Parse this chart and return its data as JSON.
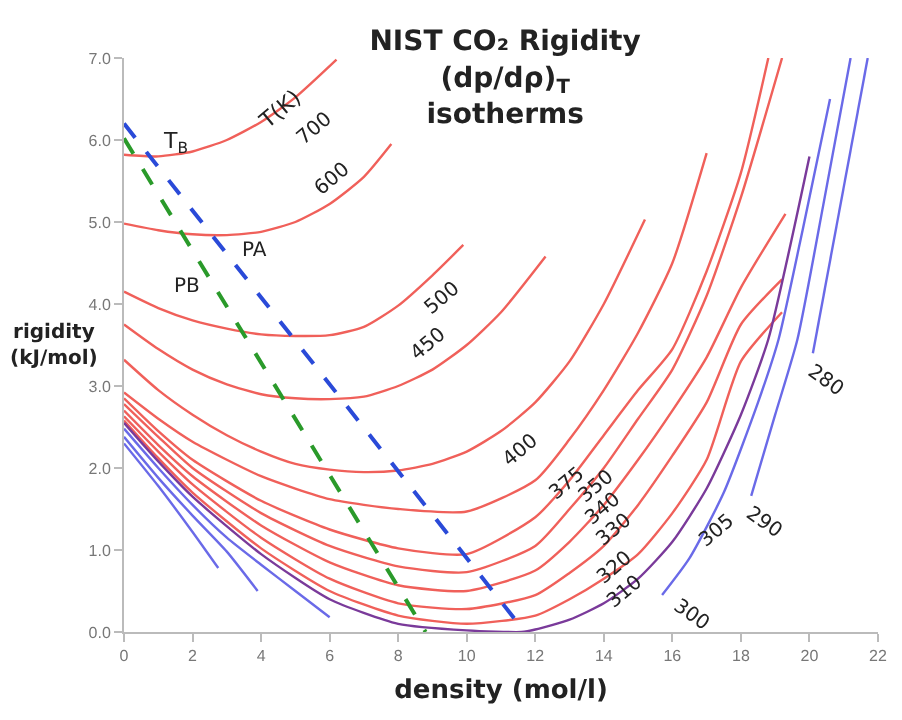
{
  "chart_data": {
    "type": "line",
    "title": "NIST CO₂ Rigidity\n(dp/dρ)$_{T}$\nisotherms",
    "xlabel": "density (mol/l)",
    "ylabel": "rigidity\n(kJ/mol)",
    "xlim": [
      0,
      22
    ],
    "ylim": [
      0,
      7
    ],
    "xticks": [
      0,
      2,
      4,
      6,
      8,
      10,
      12,
      14,
      16,
      18,
      20,
      22
    ],
    "yticks": [
      {
        "value": 0,
        "label": "0.0"
      },
      {
        "value": 1,
        "label": "1.0"
      },
      {
        "value": 2,
        "label": "2.0"
      },
      {
        "value": 3,
        "label": "3.0"
      },
      {
        "value": 4,
        "label": "4.0"
      },
      {
        "value": 5,
        "label": "5.0"
      },
      {
        "value": 6,
        "label": "6.0"
      },
      {
        "value": 7,
        "label": "7.0"
      }
    ],
    "grid": false,
    "legend": false,
    "marker": "none",
    "line_style": "solid",
    "series": [
      {
        "name": "700",
        "color": "#f0605a",
        "x": [
          0,
          1,
          2,
          3,
          4,
          5,
          6.2
        ],
        "values": [
          5.82,
          5.8,
          5.86,
          6.0,
          6.22,
          6.52,
          6.98
        ]
      },
      {
        "name": "600",
        "color": "#f0605a",
        "x": [
          0,
          1,
          2,
          3,
          4,
          5,
          6,
          7,
          7.8
        ],
        "values": [
          4.98,
          4.9,
          4.85,
          4.84,
          4.88,
          5.0,
          5.22,
          5.55,
          5.95
        ]
      },
      {
        "name": "500",
        "color": "#f0605a",
        "x": [
          0,
          1,
          2,
          3,
          4,
          5,
          6,
          7,
          8,
          9,
          9.9
        ],
        "values": [
          4.15,
          3.95,
          3.8,
          3.7,
          3.63,
          3.61,
          3.62,
          3.72,
          3.98,
          4.35,
          4.72
        ]
      },
      {
        "name": "450",
        "color": "#f0605a",
        "x": [
          0,
          1,
          2,
          3,
          4,
          5,
          6,
          7,
          8,
          9,
          10,
          11,
          12.3
        ],
        "values": [
          3.75,
          3.45,
          3.2,
          3.02,
          2.9,
          2.85,
          2.84,
          2.87,
          3.0,
          3.2,
          3.5,
          3.9,
          4.58
        ]
      },
      {
        "name": "400",
        "color": "#f0605a",
        "x": [
          0,
          1,
          2,
          3,
          4,
          5,
          6,
          7,
          8,
          9,
          10,
          11,
          12,
          13,
          14,
          15.2
        ],
        "values": [
          3.32,
          2.95,
          2.65,
          2.4,
          2.2,
          2.05,
          1.98,
          1.95,
          1.97,
          2.05,
          2.2,
          2.45,
          2.8,
          3.3,
          4.0,
          5.03
        ]
      },
      {
        "name": "375",
        "color": "#f0605a",
        "x": [
          0,
          1,
          2,
          4,
          6,
          8,
          10,
          12,
          13,
          14,
          15,
          16,
          17
        ],
        "values": [
          2.92,
          2.6,
          2.32,
          1.9,
          1.62,
          1.5,
          1.47,
          1.85,
          2.35,
          2.95,
          3.65,
          4.5,
          5.84
        ]
      },
      {
        "name": "350",
        "color": "#f0605a",
        "x": [
          0,
          1,
          2,
          4,
          6,
          8,
          10,
          12,
          13,
          14,
          15,
          16,
          17,
          18,
          18.8
        ],
        "values": [
          2.85,
          2.45,
          2.1,
          1.6,
          1.25,
          1.02,
          0.95,
          1.4,
          1.85,
          2.4,
          2.95,
          3.45,
          4.4,
          5.6,
          7.0
        ]
      },
      {
        "name": "340",
        "color": "#f0605a",
        "x": [
          0,
          1,
          2,
          4,
          6,
          8,
          10,
          12,
          13,
          14,
          15,
          16,
          17,
          18,
          19.2
        ],
        "values": [
          2.78,
          2.38,
          2.0,
          1.45,
          1.05,
          0.8,
          0.73,
          1.05,
          1.5,
          2.0,
          2.6,
          3.2,
          4.1,
          5.3,
          7.0
        ]
      },
      {
        "name": "330",
        "color": "#f0605a",
        "x": [
          0,
          1,
          2,
          4,
          6,
          8,
          10,
          12,
          13,
          14,
          15,
          16,
          17,
          18,
          19.3
        ],
        "values": [
          2.7,
          2.28,
          1.9,
          1.3,
          0.85,
          0.57,
          0.5,
          0.75,
          1.1,
          1.55,
          2.1,
          2.7,
          3.35,
          4.2,
          5.1
        ]
      },
      {
        "name": "320",
        "color": "#f0605a",
        "x": [
          0,
          1,
          2,
          4,
          6,
          8,
          10,
          12,
          13,
          14,
          15,
          16,
          17,
          18,
          19.2
        ],
        "values": [
          2.63,
          2.2,
          1.8,
          1.15,
          0.65,
          0.35,
          0.28,
          0.45,
          0.72,
          1.05,
          1.55,
          2.15,
          2.8,
          3.75,
          4.3
        ]
      },
      {
        "name": "310",
        "color": "#f0605a",
        "x": [
          0,
          1,
          2,
          4,
          6,
          8,
          10,
          12,
          13,
          14,
          15,
          16,
          17,
          18,
          19.2
        ],
        "values": [
          2.58,
          2.12,
          1.7,
          1.02,
          0.5,
          0.2,
          0.1,
          0.2,
          0.4,
          0.65,
          0.95,
          1.45,
          2.1,
          3.3,
          3.9
        ]
      },
      {
        "name": "305",
        "color": "#7a3a9a",
        "x": [
          0,
          1,
          2,
          4,
          6,
          8,
          10,
          11.6,
          12,
          13,
          14,
          15,
          16,
          17,
          18,
          18.8,
          20
        ],
        "values": [
          2.55,
          2.08,
          1.65,
          0.95,
          0.4,
          0.1,
          0.02,
          0,
          0.03,
          0.15,
          0.35,
          0.65,
          1.1,
          1.75,
          2.65,
          3.57,
          5.8
        ]
      },
      {
        "name": "300",
        "color": "#6a6ae8",
        "x": [
          0,
          1,
          2,
          3,
          4,
          5,
          6,
          10,
          15.7,
          16.5,
          17.5,
          18.5,
          19.1,
          19.8,
          20.6
        ],
        "values": [
          2.48,
          2.0,
          1.55,
          1.15,
          0.82,
          0.5,
          0.18,
          null,
          0.45,
          0.9,
          1.7,
          2.8,
          3.57,
          4.9,
          6.5
        ]
      },
      {
        "name": "290",
        "color": "#6a6ae8",
        "x": [
          0,
          1,
          2,
          3,
          3.9,
          10,
          18.3,
          19,
          19.65,
          20.4,
          21.2
        ],
        "values": [
          2.38,
          1.88,
          1.42,
          0.98,
          0.5,
          null,
          1.66,
          2.65,
          3.57,
          5.2,
          7.0
        ]
      },
      {
        "name": "280",
        "color": "#6a6ae8",
        "x": [
          0,
          1,
          2,
          2.75,
          10,
          20.1,
          20.9,
          21.7
        ],
        "values": [
          2.3,
          1.78,
          1.22,
          0.78,
          null,
          3.4,
          5.2,
          7.0
        ]
      },
      {
        "name": "PB",
        "color": "#2a9a2a",
        "line_style": "dashed",
        "x": [
          0,
          8.8
        ],
        "values": [
          6.02,
          0
        ]
      },
      {
        "name": "PA",
        "color": "#2a4ad8",
        "line_style": "dashed",
        "x": [
          0,
          11.7
        ],
        "values": [
          6.2,
          0
        ]
      }
    ],
    "annotations": [
      "T(K)",
      "T$_{B}$"
    ]
  }
}
